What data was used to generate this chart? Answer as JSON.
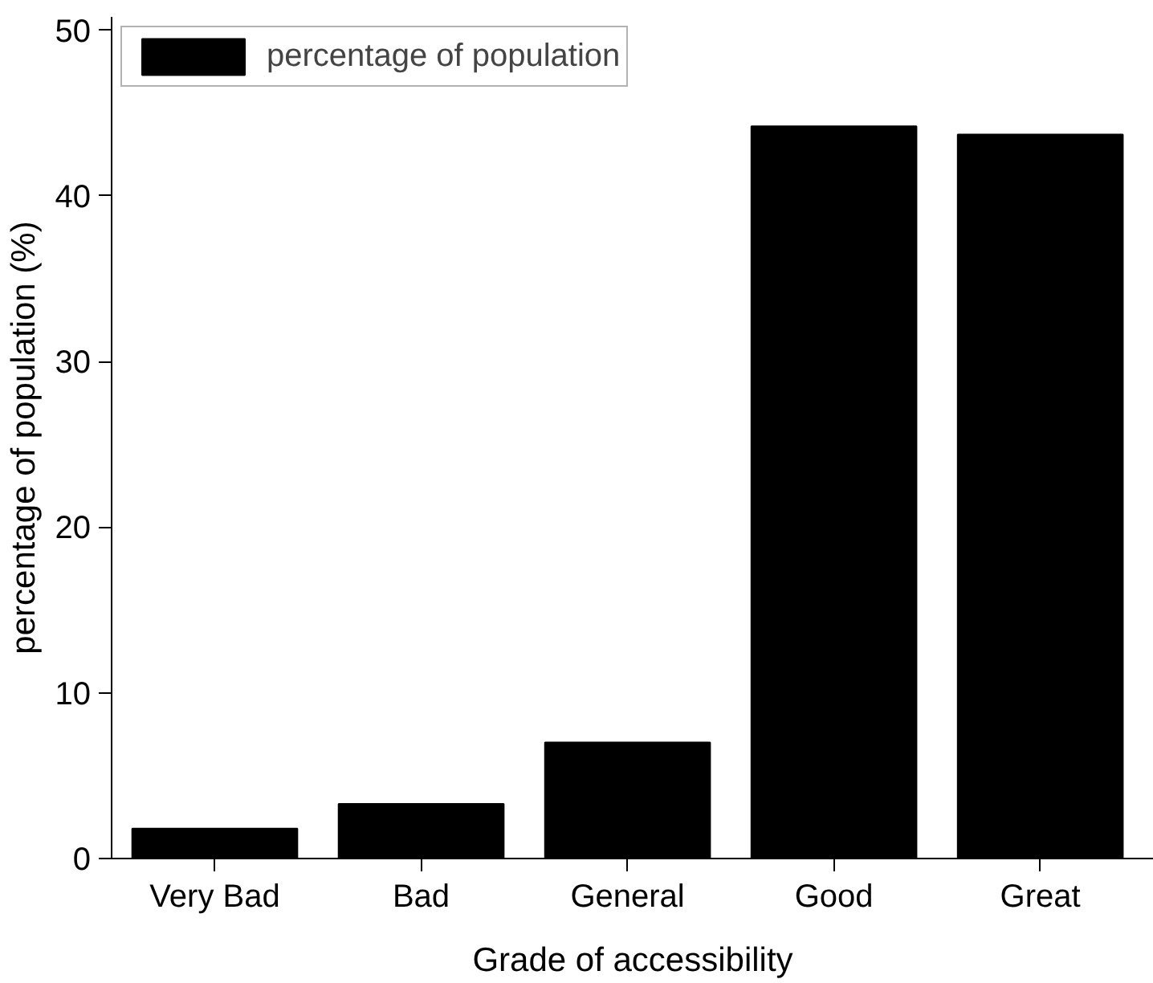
{
  "chart_data": {
    "type": "bar",
    "xlabel": "Grade of accessibility",
    "ylabel": "percentage of population (%)",
    "categories": [
      "Very Bad",
      "Bad",
      "General",
      "Good",
      "Great"
    ],
    "series": [
      {
        "name": "percentage of population",
        "color": "#000000",
        "values": [
          1.8,
          3.3,
          7.0,
          44.2,
          43.7
        ]
      }
    ],
    "ylim": [
      0,
      50.8
    ],
    "yticks": [
      0,
      10,
      20,
      30,
      40,
      50
    ],
    "grid": false,
    "legend": "top left"
  }
}
